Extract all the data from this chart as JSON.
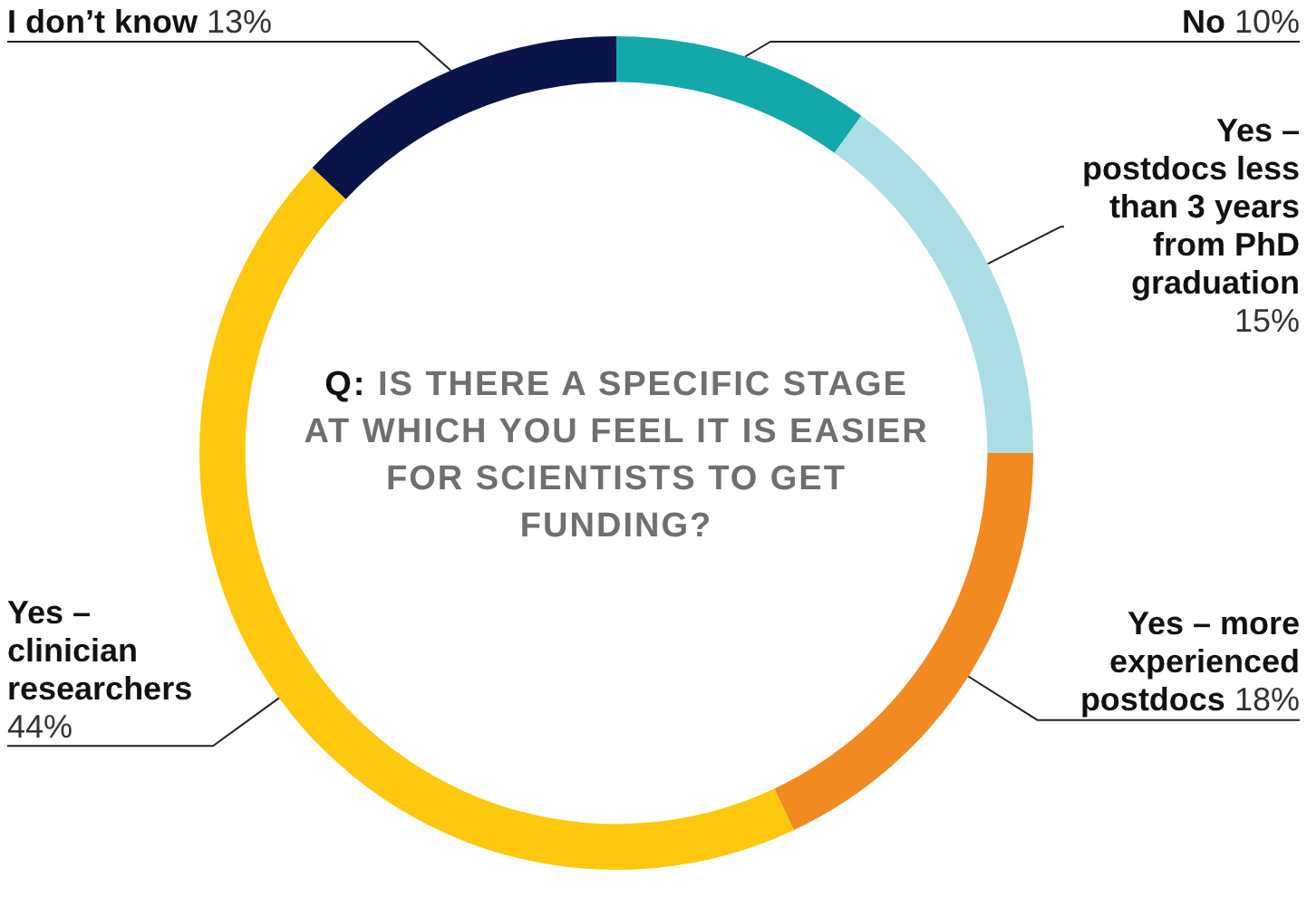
{
  "chart_data": {
    "type": "donut",
    "title": "Q: IS THERE A SPECIFIC STAGE AT WHICH YOU FEEL IT IS EASIER FOR SCIENTISTS TO GET FUNDING?",
    "categories": [
      "No",
      "Yes – postdocs less than 3 years from PhD graduation",
      "Yes – more experienced postdocs",
      "Yes – clinician researchers",
      "I don’t know"
    ],
    "values": [
      10,
      15,
      18,
      44,
      13
    ],
    "value_labels": [
      "10%",
      "15%",
      "18%",
      "44%",
      "13%"
    ],
    "colors": [
      "#13a8aa",
      "#abdde4",
      "#f28a22",
      "#fdc80e",
      "#0b1448"
    ]
  }
}
